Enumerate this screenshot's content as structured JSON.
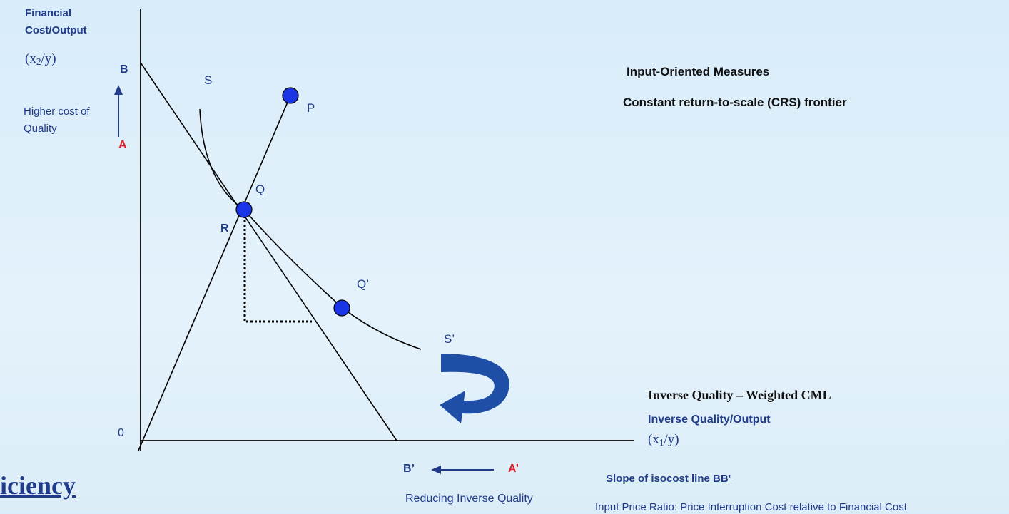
{
  "y_axis": {
    "title_line1": "Financial",
    "title_line2": "Cost/Output",
    "formula": "x2/y"
  },
  "x_axis": {
    "title_bold": "Inverse Quality – Weighted CML",
    "title_line1": "Inverse Quality/Output",
    "formula": "x1/y"
  },
  "points": {
    "origin": "0",
    "B": "B",
    "A": "A",
    "B_prime": "B’",
    "A_prime": "A’",
    "S": "S",
    "S_prime": "S’",
    "P": "P",
    "Q": "Q",
    "R": "R",
    "Q_prime": "Q’"
  },
  "notes": {
    "higher_cost_line1": "Higher cost of",
    "higher_cost_line2": "Quality",
    "input_oriented": "Input-Oriented Measures",
    "crs_frontier": "Constant return-to-scale (CRS) frontier",
    "reducing_inverse_quality": "Reducing Inverse Quality",
    "slope_title": "Slope of isocost line BB'",
    "price_ratio": "Input Price Ratio: Price Interruption Cost relative to Financial Cost",
    "efficiency_fragment": "iciency"
  },
  "colors": {
    "navy": "#1f3b8a",
    "red": "#e0202a",
    "marker_fill": "#1a35e6",
    "arrow_blue": "#1f4ea6"
  }
}
